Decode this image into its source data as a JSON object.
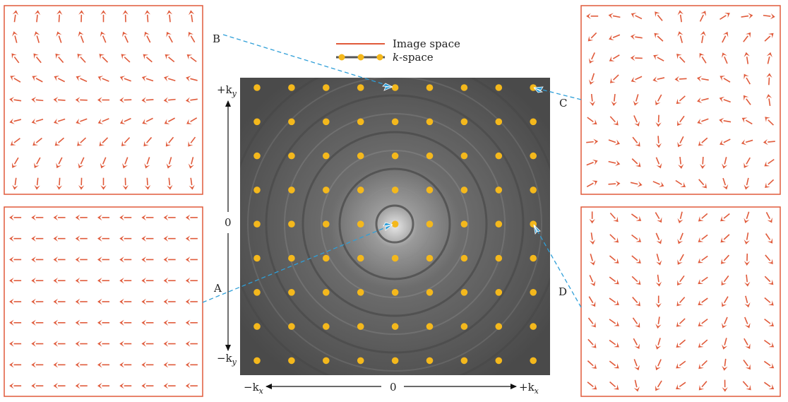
{
  "legend": {
    "image_space_label": "Image space",
    "k_space_prefix": "k",
    "k_space_suffix": "-space",
    "image_space_color": "#e05a3a",
    "k_space_line_color": "#555555",
    "k_space_dot_color": "#f4b81c"
  },
  "panels": {
    "A": {
      "label": "A"
    },
    "B": {
      "label": "B"
    },
    "C": {
      "label": "C"
    },
    "D": {
      "label": "D"
    }
  },
  "axes": {
    "ky_plus": "+k",
    "ky_minus": "−k",
    "kx_plus": "+k",
    "kx_minus": "−k",
    "y_sub": "y",
    "x_sub": "x",
    "zero_y": "0",
    "zero_x": "0"
  },
  "colors": {
    "arrow": "#e05a3a",
    "panel_border": "#e05a3a",
    "connector": "#2f9fd8",
    "dot": "#f4b81c"
  },
  "icons": [
    "arrow-field-icon",
    "k-space-dot-icon",
    "pointer-arrowhead-icon"
  ]
}
